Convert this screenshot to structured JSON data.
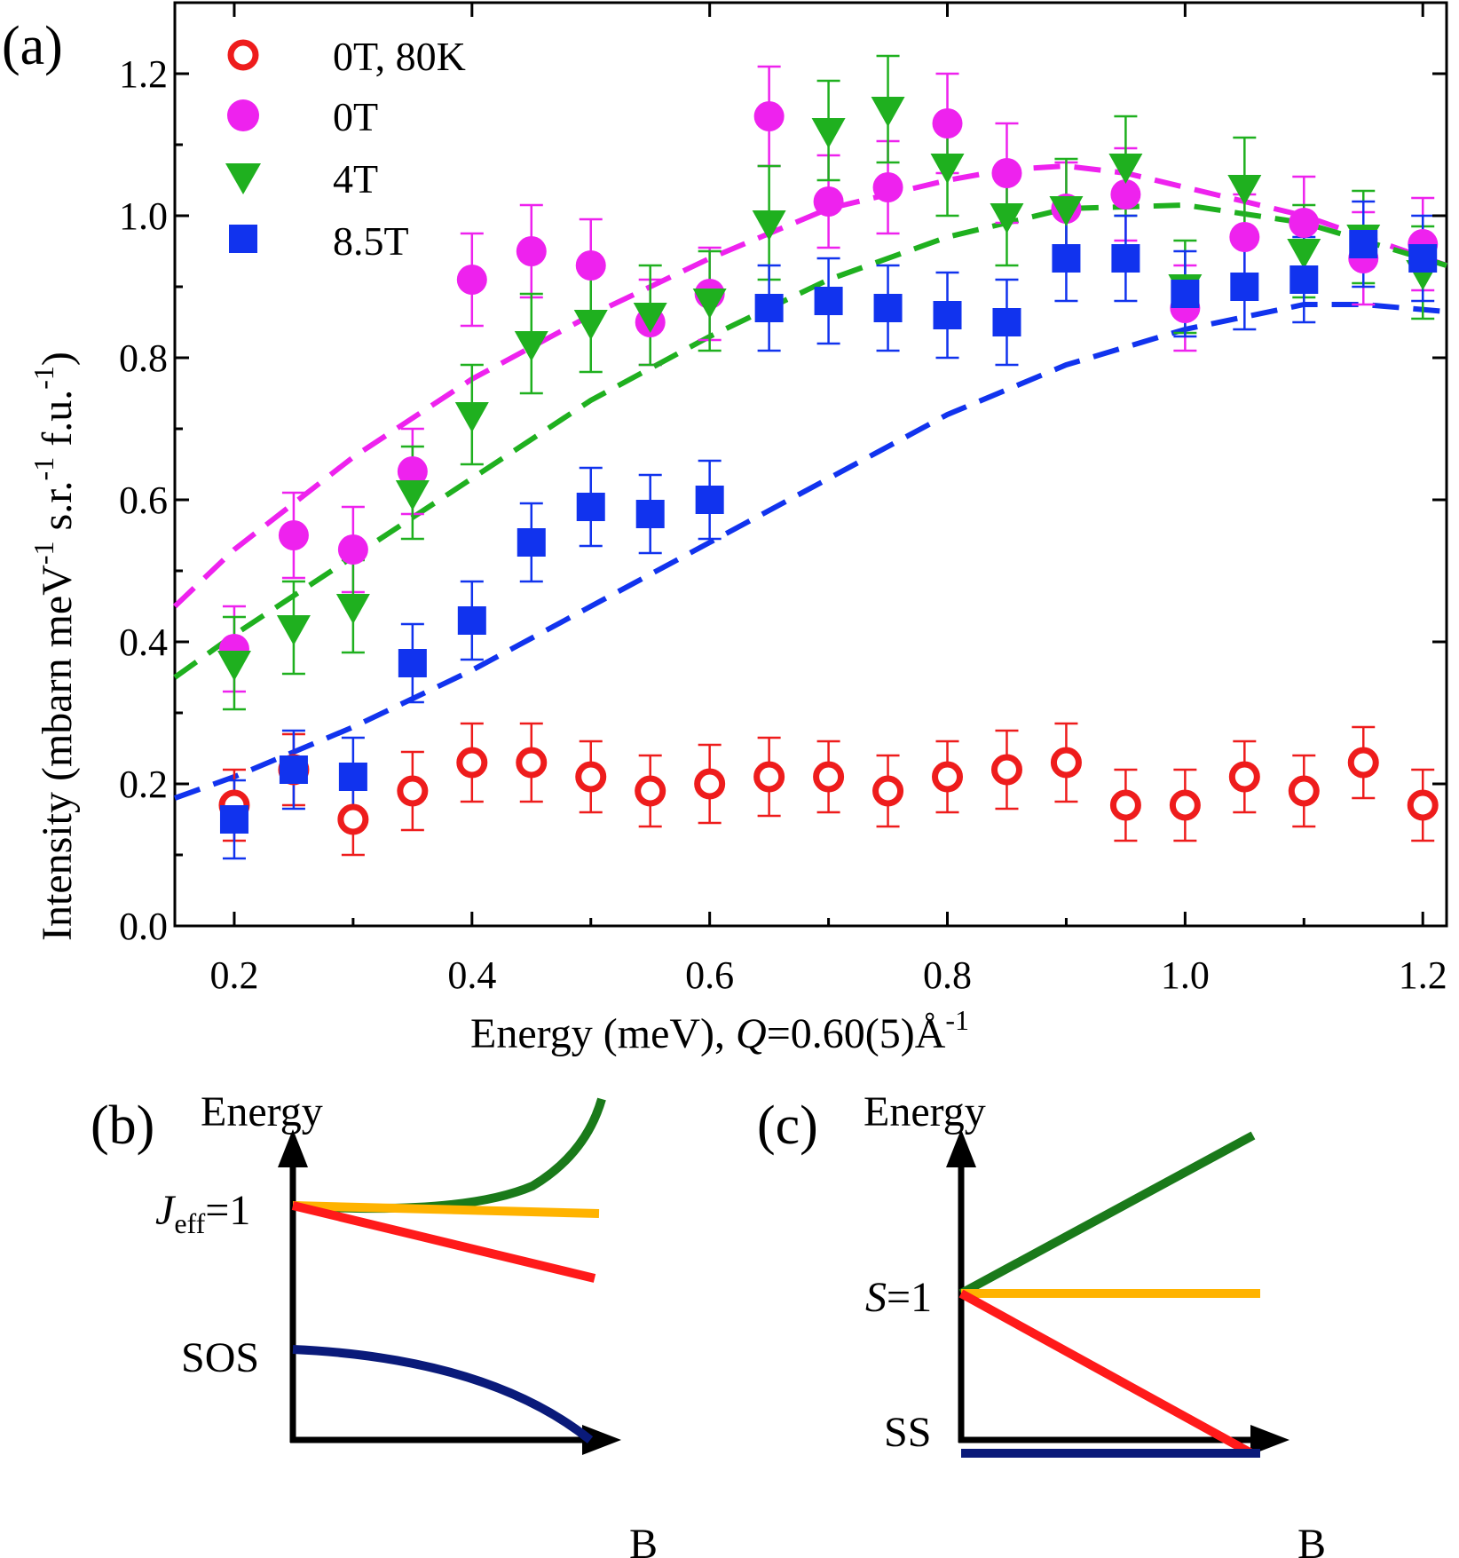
{
  "panel_labels": {
    "a": "(a)",
    "b": "(b)",
    "c": "(c)"
  },
  "colors": {
    "zero80": "#ee1c1c",
    "zeroT": "#ee22ee",
    "fourT": "#1fb01f",
    "eightT": "#1133ee",
    "green": "#1a7a1a",
    "orange": "#ffb300",
    "red": "#ff1a1a",
    "navy": "#0a1a7a"
  },
  "chart_data": {
    "type": "scatter",
    "title": "",
    "xlabel_main": "Energy (meV), ",
    "xlabel_q": "Q",
    "xlabel_val": "=0.60(5)Å",
    "xlabel_sup": "-1",
    "ylabel_main": "Intensity (mbarn meV",
    "ylabel_s1": "-1",
    "ylabel_mid": " s.r.",
    "ylabel_s2": "-1",
    "ylabel_end": " f.u.",
    "ylabel_s3": "-1",
    "ylabel_close": ")",
    "xlim": [
      0.15,
      1.22
    ],
    "ylim": [
      0.0,
      1.3
    ],
    "xticks": [
      0.2,
      0.4,
      0.6,
      0.8,
      1.0,
      1.2
    ],
    "xtick_labels": [
      "0.2",
      "0.4",
      "0.6",
      "0.8",
      "1.0",
      "1.2"
    ],
    "yticks": [
      0.0,
      0.2,
      0.4,
      0.6,
      0.8,
      1.0,
      1.2
    ],
    "ytick_labels": [
      "0.0",
      "0.2",
      "0.4",
      "0.6",
      "0.8",
      "1.0",
      "1.2"
    ],
    "legend_position": "top-left",
    "x": [
      0.2,
      0.25,
      0.3,
      0.35,
      0.4,
      0.45,
      0.5,
      0.55,
      0.6,
      0.65,
      0.7,
      0.75,
      0.8,
      0.85,
      0.9,
      0.95,
      1.0,
      1.05,
      1.1,
      1.15,
      1.2
    ],
    "series": [
      {
        "name": "0T, 80K",
        "marker": "open-circle",
        "color": "#ee1c1c",
        "values": [
          0.17,
          0.22,
          0.15,
          0.19,
          0.23,
          0.23,
          0.21,
          0.19,
          0.2,
          0.21,
          0.21,
          0.19,
          0.21,
          0.22,
          0.23,
          0.17,
          0.17,
          0.21,
          0.19,
          0.23,
          0.17
        ],
        "errors": [
          0.05,
          0.05,
          0.05,
          0.055,
          0.055,
          0.055,
          0.05,
          0.05,
          0.055,
          0.055,
          0.05,
          0.05,
          0.05,
          0.055,
          0.055,
          0.05,
          0.05,
          0.05,
          0.05,
          0.05,
          0.05
        ]
      },
      {
        "name": "0T",
        "marker": "filled-circle",
        "color": "#ee22ee",
        "values": [
          0.39,
          0.55,
          0.53,
          0.64,
          0.91,
          0.95,
          0.93,
          0.85,
          0.89,
          1.14,
          1.02,
          1.04,
          1.13,
          1.06,
          1.01,
          1.03,
          0.87,
          0.97,
          0.99,
          0.94,
          0.96
        ],
        "errors": [
          0.06,
          0.06,
          0.06,
          0.06,
          0.065,
          0.065,
          0.065,
          0.06,
          0.065,
          0.07,
          0.065,
          0.065,
          0.07,
          0.07,
          0.065,
          0.065,
          0.06,
          0.06,
          0.065,
          0.065,
          0.065
        ]
      },
      {
        "name": "4T",
        "marker": "filled-down-triangle",
        "color": "#1fb01f",
        "values": [
          0.37,
          0.42,
          0.45,
          0.61,
          0.72,
          0.82,
          0.85,
          0.86,
          0.88,
          0.99,
          1.12,
          1.15,
          1.07,
          1.0,
          1.01,
          1.07,
          0.9,
          1.04,
          0.95,
          0.97,
          0.92
        ],
        "errors": [
          0.065,
          0.065,
          0.065,
          0.065,
          0.07,
          0.07,
          0.07,
          0.07,
          0.07,
          0.08,
          0.07,
          0.075,
          0.07,
          0.07,
          0.07,
          0.07,
          0.065,
          0.07,
          0.065,
          0.065,
          0.065
        ]
      },
      {
        "name": "8.5T",
        "marker": "filled-square",
        "color": "#1133ee",
        "values": [
          0.15,
          0.22,
          0.21,
          0.37,
          0.43,
          0.54,
          0.59,
          0.58,
          0.6,
          0.87,
          0.88,
          0.87,
          0.86,
          0.85,
          0.94,
          0.94,
          0.89,
          0.9,
          0.91,
          0.96,
          0.94
        ],
        "errors": [
          0.055,
          0.055,
          0.055,
          0.055,
          0.055,
          0.055,
          0.055,
          0.055,
          0.055,
          0.06,
          0.06,
          0.06,
          0.06,
          0.06,
          0.06,
          0.06,
          0.06,
          0.06,
          0.06,
          0.06,
          0.06
        ]
      }
    ],
    "fits": [
      {
        "name": "0T fit",
        "color": "#ee22ee",
        "x": [
          0.15,
          0.2,
          0.3,
          0.4,
          0.5,
          0.6,
          0.7,
          0.8,
          0.85,
          0.9,
          0.95,
          1.0,
          1.1,
          1.22
        ],
        "y": [
          0.45,
          0.53,
          0.66,
          0.77,
          0.86,
          0.94,
          1.01,
          1.05,
          1.065,
          1.07,
          1.06,
          1.04,
          1.0,
          0.93
        ]
      },
      {
        "name": "4T fit",
        "color": "#1fb01f",
        "x": [
          0.15,
          0.2,
          0.3,
          0.4,
          0.5,
          0.6,
          0.7,
          0.8,
          0.9,
          1.0,
          1.1,
          1.22
        ],
        "y": [
          0.35,
          0.41,
          0.52,
          0.63,
          0.74,
          0.83,
          0.91,
          0.97,
          1.01,
          1.015,
          0.99,
          0.93
        ]
      },
      {
        "name": "8.5T fit",
        "color": "#1133ee",
        "x": [
          0.15,
          0.2,
          0.3,
          0.4,
          0.5,
          0.6,
          0.7,
          0.8,
          0.9,
          1.0,
          1.1,
          1.15,
          1.22
        ],
        "y": [
          0.18,
          0.21,
          0.28,
          0.36,
          0.45,
          0.54,
          0.63,
          0.72,
          0.79,
          0.84,
          0.875,
          0.875,
          0.865
        ]
      }
    ]
  },
  "panel_b": {
    "energy_label": "Energy",
    "b_label": "B",
    "jeff_j": "J",
    "jeff_sub": "eff",
    "jeff_val": "=1",
    "sos_label": "SOS"
  },
  "panel_c": {
    "energy_label": "Energy",
    "b_label": "B",
    "s_italic": "S",
    "s_val": "=1",
    "ss_label": "SS"
  }
}
